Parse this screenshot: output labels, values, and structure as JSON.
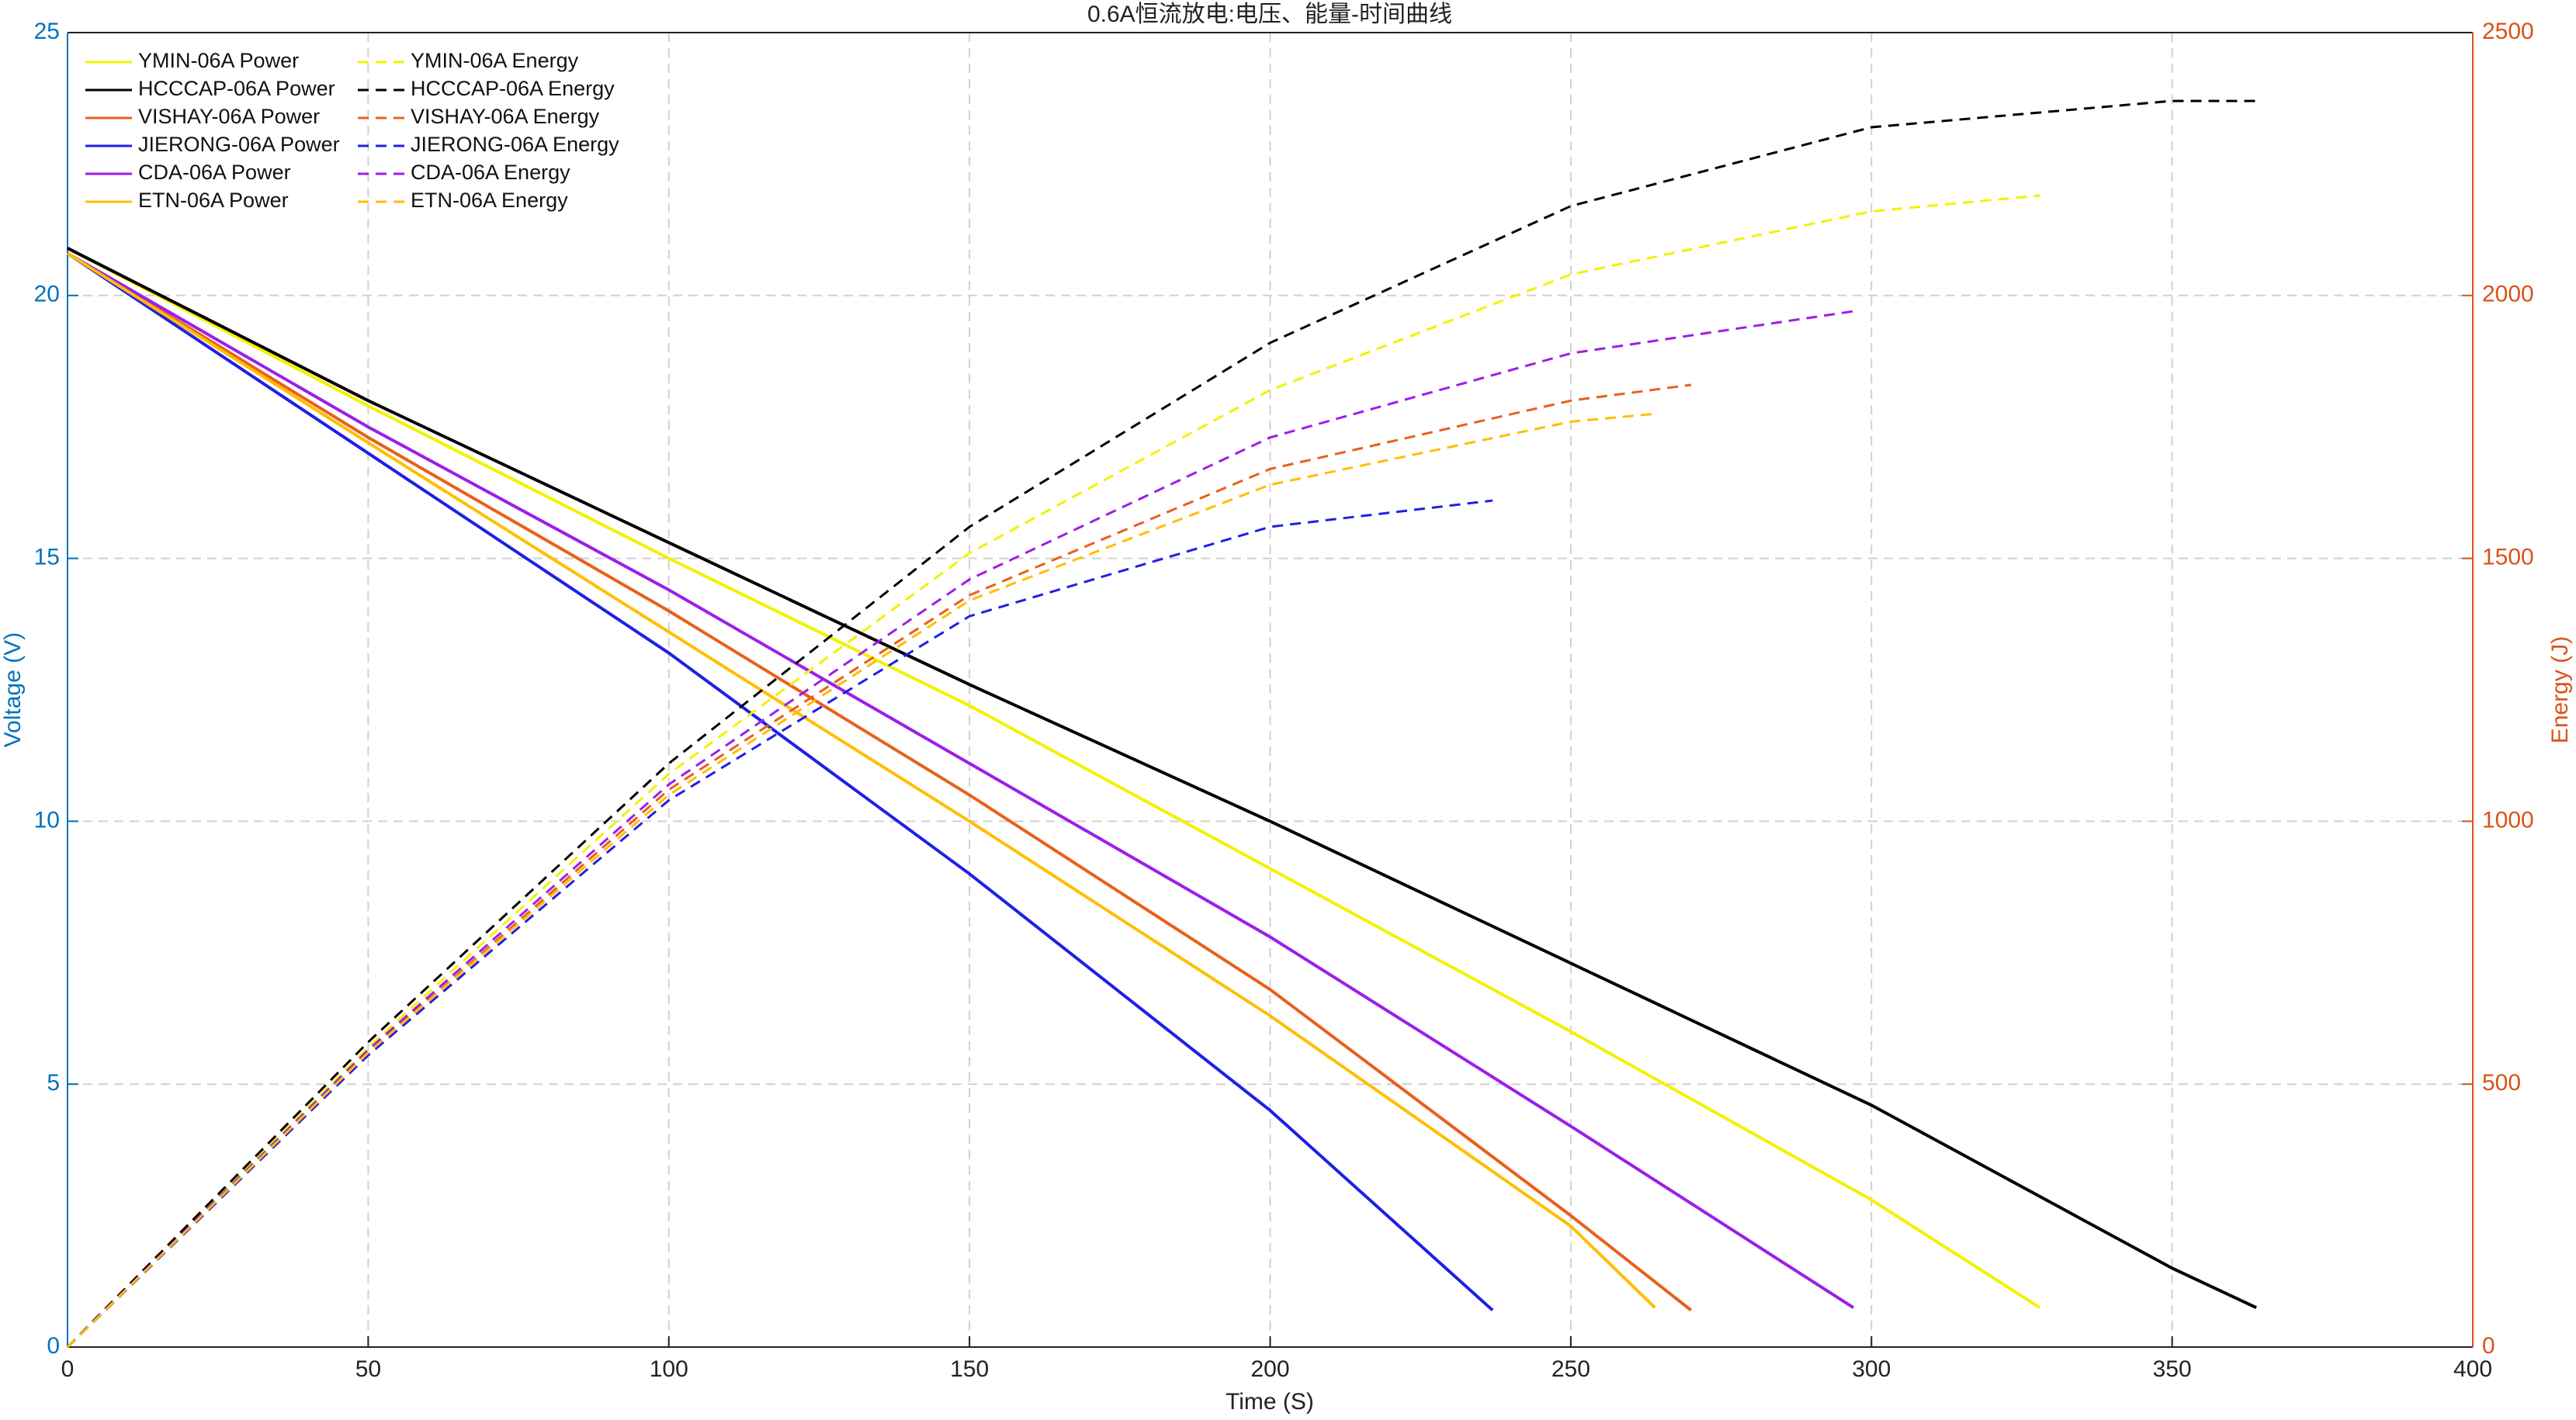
{
  "chart_data": {
    "type": "line",
    "title": "0.6A恒流放电:电压、能量-时间曲线",
    "xlabel": "Time (S)",
    "ylabel": "Voltage (V)",
    "y2label": "Energy (J)",
    "xlim": [
      0,
      400
    ],
    "xticks": [
      0,
      50,
      100,
      150,
      200,
      250,
      300,
      350,
      400
    ],
    "ylim": [
      0,
      25
    ],
    "yticks": [
      0,
      5,
      10,
      15,
      20,
      25
    ],
    "y2lim": [
      0,
      2500
    ],
    "y2ticks": [
      0,
      500,
      1000,
      1500,
      2000,
      2500
    ],
    "grid": true,
    "legend": "northwest",
    "ycolor": "#0072bd",
    "y2color": "#d95319",
    "series": [
      {
        "name": "YMIN-06A Power",
        "color": "#f2f200",
        "linestyle": "solid",
        "x": [
          0,
          50,
          100,
          150,
          200,
          250,
          300,
          328
        ],
        "values": [
          20.9,
          17.9,
          15.0,
          12.2,
          9.1,
          6.0,
          2.8,
          0.75
        ]
      },
      {
        "name": "HCCCAP-06A Power",
        "color": "#000000",
        "linestyle": "solid",
        "x": [
          0,
          50,
          100,
          150,
          200,
          250,
          300,
          350,
          364
        ],
        "values": [
          20.9,
          18.0,
          15.3,
          12.6,
          10.0,
          7.3,
          4.6,
          1.5,
          0.75
        ]
      },
      {
        "name": "VISHAY-06A Power",
        "color": "#e8601c",
        "linestyle": "solid",
        "x": [
          0,
          50,
          100,
          150,
          200,
          250,
          270
        ],
        "values": [
          20.8,
          17.3,
          14.0,
          10.5,
          6.8,
          2.5,
          0.7
        ]
      },
      {
        "name": "JIERONG-06A Power",
        "color": "#1f1fe6",
        "linestyle": "solid",
        "x": [
          0,
          50,
          100,
          150,
          200,
          237
        ],
        "values": [
          20.8,
          17.0,
          13.2,
          9.0,
          4.5,
          0.7
        ]
      },
      {
        "name": "CDA-06A Power",
        "color": "#9b1fe8",
        "linestyle": "solid",
        "x": [
          0,
          50,
          100,
          150,
          200,
          250,
          297
        ],
        "values": [
          20.8,
          17.5,
          14.4,
          11.1,
          7.8,
          4.2,
          0.75
        ]
      },
      {
        "name": "ETN-06A Power",
        "color": "#ffbe00",
        "linestyle": "solid",
        "x": [
          0,
          50,
          100,
          150,
          200,
          250,
          264
        ],
        "values": [
          20.8,
          17.2,
          13.6,
          10.0,
          6.3,
          2.3,
          0.75
        ]
      },
      {
        "name": "YMIN-06A Energy",
        "color": "#f2f200",
        "linestyle": "dashed",
        "axis": "y2",
        "x": [
          0,
          50,
          100,
          150,
          200,
          250,
          300,
          328
        ],
        "values": [
          0,
          570,
          1090,
          1510,
          1820,
          2040,
          2160,
          2190
        ]
      },
      {
        "name": "HCCCAP-06A Energy",
        "color": "#000000",
        "linestyle": "dashed",
        "axis": "y2",
        "x": [
          0,
          50,
          100,
          150,
          200,
          250,
          300,
          350,
          364
        ],
        "values": [
          0,
          580,
          1110,
          1560,
          1910,
          2170,
          2320,
          2370,
          2370
        ]
      },
      {
        "name": "VISHAY-06A Energy",
        "color": "#e8601c",
        "linestyle": "dashed",
        "axis": "y2",
        "x": [
          0,
          50,
          100,
          150,
          200,
          250,
          270
        ],
        "values": [
          0,
          560,
          1060,
          1430,
          1670,
          1800,
          1830
        ]
      },
      {
        "name": "JIERONG-06A Energy",
        "color": "#1f1fe6",
        "linestyle": "dashed",
        "axis": "y2",
        "x": [
          0,
          50,
          100,
          150,
          200,
          237
        ],
        "values": [
          0,
          555,
          1040,
          1390,
          1560,
          1610
        ]
      },
      {
        "name": "CDA-06A Energy",
        "color": "#9b1fe8",
        "linestyle": "dashed",
        "axis": "y2",
        "x": [
          0,
          50,
          100,
          150,
          200,
          250,
          297
        ],
        "values": [
          0,
          565,
          1070,
          1460,
          1730,
          1890,
          1970
        ]
      },
      {
        "name": "ETN-06A Energy",
        "color": "#ffbe00",
        "linestyle": "dashed",
        "axis": "y2",
        "x": [
          0,
          50,
          100,
          150,
          200,
          250,
          264
        ],
        "values": [
          0,
          560,
          1050,
          1420,
          1640,
          1760,
          1775
        ]
      }
    ]
  }
}
